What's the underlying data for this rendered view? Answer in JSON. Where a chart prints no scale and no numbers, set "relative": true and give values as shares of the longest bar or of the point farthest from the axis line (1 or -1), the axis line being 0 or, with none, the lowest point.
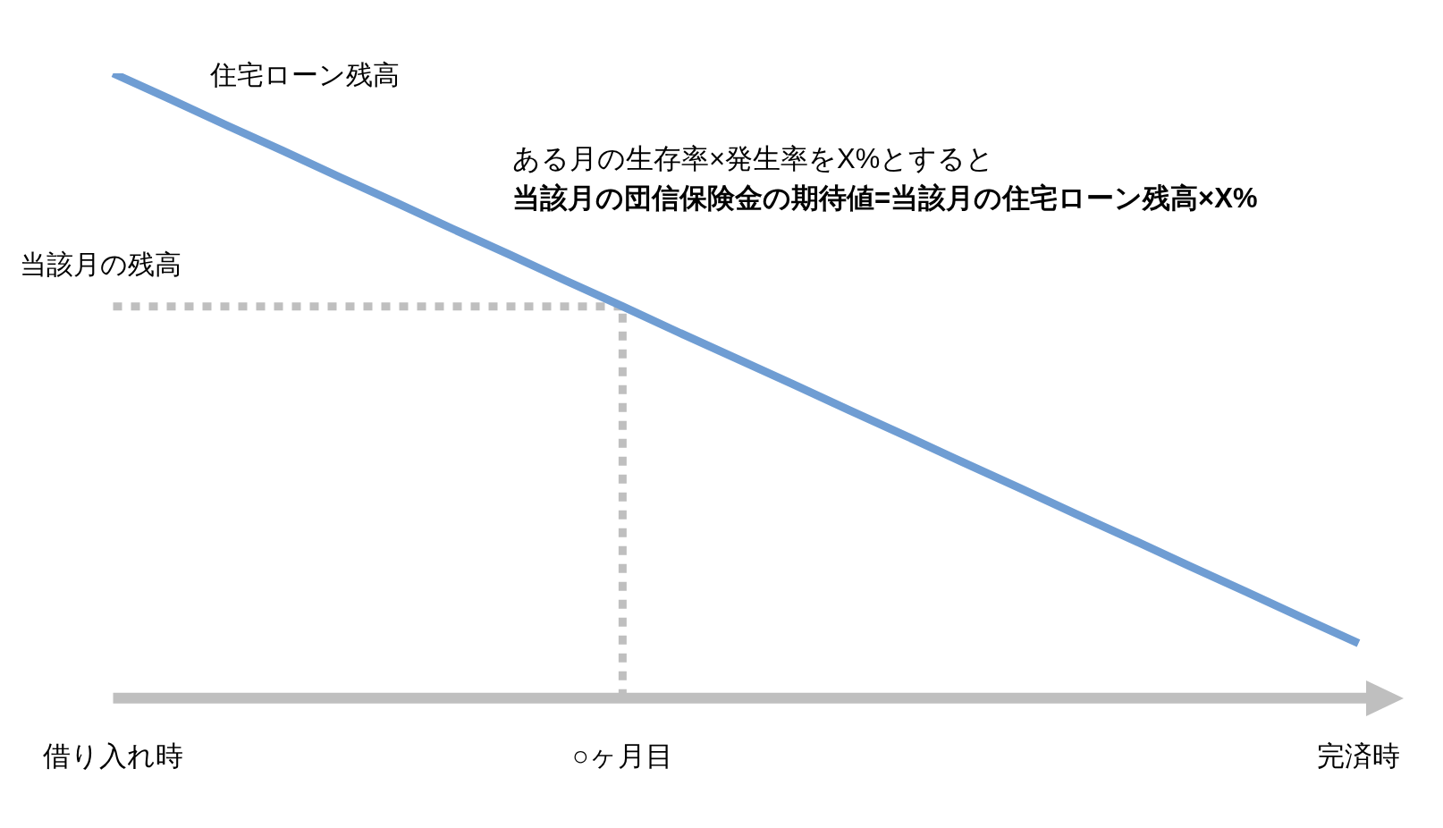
{
  "chart_data": {
    "type": "line",
    "relative": true,
    "categories": [
      "借り入れ時",
      null,
      null,
      null,
      null,
      null,
      null,
      null,
      null,
      "○ヶ月目",
      null,
      null,
      null,
      null,
      null,
      null,
      null,
      null,
      null,
      null,
      null,
      null,
      "完済時"
    ],
    "series": [
      {
        "name": "住宅ローン残高",
        "color": "#6f9dd3",
        "values": [
          1,
          0.959,
          0.917,
          0.876,
          0.834,
          0.793,
          0.751,
          0.71,
          0.668,
          0.627,
          0.585,
          0.544,
          0.503,
          0.461,
          0.42,
          0.378,
          0.337,
          0.295,
          0.254,
          0.212,
          0.171,
          0.129,
          0.088
        ]
      }
    ],
    "ref_lines": [
      {
        "axis": "y",
        "value": 0.627,
        "label": "当該月の残高",
        "color": "#bfbfbf",
        "line_style": "dotted"
      },
      {
        "axis": "x",
        "value": "○ヶ月目",
        "color": "#bfbfbf",
        "line_style": "dotted"
      }
    ],
    "annotations": [
      "ある月の生存率×発生率をX%とすると",
      "当該月の団信保険金の期待値=当該月の住宅ローン残高×X%"
    ],
    "grid": false,
    "legend": false,
    "tick_labels": "x",
    "marker": "none",
    "line_style": "solid"
  }
}
